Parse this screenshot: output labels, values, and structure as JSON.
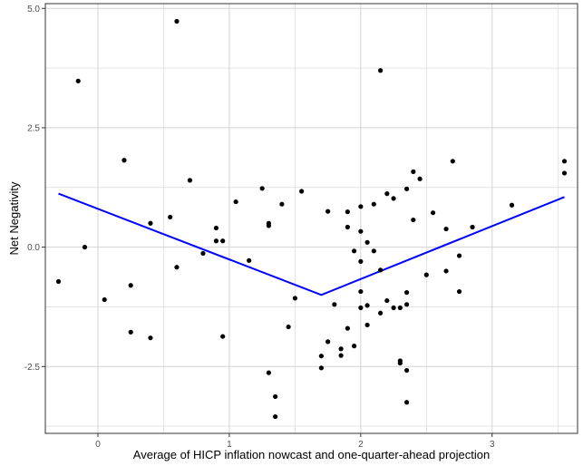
{
  "chart_data": {
    "type": "scatter",
    "title": "",
    "xlabel": "Average of HICP inflation nowcast and one-quarter-ahead projection",
    "ylabel": "Net Negativity",
    "xlim": [
      -0.4,
      3.65
    ],
    "ylim": [
      -3.9,
      5.1
    ],
    "x_ticks": [
      0,
      1,
      2,
      3
    ],
    "x_tick_labels": [
      "0",
      "1",
      "2",
      "3"
    ],
    "y_ticks": [
      -2.5,
      0.0,
      2.5,
      5.0
    ],
    "y_tick_labels": [
      "-2.5",
      "0.0",
      "2.5",
      "5.0"
    ],
    "grid": true,
    "background": "#ffffff",
    "grid_color": "#d3d3d3",
    "point_color": "#000000",
    "line_color": "#0000ff",
    "points": [
      {
        "x": -0.3,
        "y": -0.72
      },
      {
        "x": -0.15,
        "y": 3.48
      },
      {
        "x": -0.1,
        "y": 0.0
      },
      {
        "x": 0.05,
        "y": -1.1
      },
      {
        "x": 0.2,
        "y": 1.82
      },
      {
        "x": 0.25,
        "y": -0.8
      },
      {
        "x": 0.25,
        "y": -1.78
      },
      {
        "x": 0.4,
        "y": 0.5
      },
      {
        "x": 0.4,
        "y": -1.9
      },
      {
        "x": 0.55,
        "y": 0.63
      },
      {
        "x": 0.6,
        "y": 4.73
      },
      {
        "x": 0.6,
        "y": -0.42
      },
      {
        "x": 0.7,
        "y": 1.4
      },
      {
        "x": 0.8,
        "y": -0.13
      },
      {
        "x": 0.9,
        "y": 0.4
      },
      {
        "x": 0.9,
        "y": 0.13
      },
      {
        "x": 0.95,
        "y": 0.13
      },
      {
        "x": 0.95,
        "y": -1.87
      },
      {
        "x": 1.05,
        "y": 0.95
      },
      {
        "x": 1.15,
        "y": -0.28
      },
      {
        "x": 1.25,
        "y": 1.23
      },
      {
        "x": 1.3,
        "y": 0.5
      },
      {
        "x": 1.3,
        "y": 0.45
      },
      {
        "x": 1.3,
        "y": -2.63
      },
      {
        "x": 1.35,
        "y": -3.13
      },
      {
        "x": 1.35,
        "y": -3.55
      },
      {
        "x": 1.4,
        "y": 0.9
      },
      {
        "x": 1.45,
        "y": -1.67
      },
      {
        "x": 1.5,
        "y": -1.07
      },
      {
        "x": 1.55,
        "y": 1.17
      },
      {
        "x": 1.7,
        "y": -2.28
      },
      {
        "x": 1.7,
        "y": -2.53
      },
      {
        "x": 1.75,
        "y": 0.75
      },
      {
        "x": 1.75,
        "y": -1.98
      },
      {
        "x": 1.8,
        "y": -1.2
      },
      {
        "x": 1.85,
        "y": -2.13
      },
      {
        "x": 1.85,
        "y": -2.27
      },
      {
        "x": 1.9,
        "y": 0.74
      },
      {
        "x": 1.9,
        "y": 0.42
      },
      {
        "x": 1.9,
        "y": -1.7
      },
      {
        "x": 1.95,
        "y": -0.08
      },
      {
        "x": 1.95,
        "y": -2.07
      },
      {
        "x": 2.0,
        "y": 0.85
      },
      {
        "x": 2.0,
        "y": 0.33
      },
      {
        "x": 2.0,
        "y": -0.3
      },
      {
        "x": 2.0,
        "y": -0.93
      },
      {
        "x": 2.0,
        "y": -1.27
      },
      {
        "x": 2.05,
        "y": 0.1
      },
      {
        "x": 2.05,
        "y": -1.22
      },
      {
        "x": 2.05,
        "y": -1.63
      },
      {
        "x": 2.1,
        "y": 0.9
      },
      {
        "x": 2.1,
        "y": -0.08
      },
      {
        "x": 2.15,
        "y": 3.7
      },
      {
        "x": 2.15,
        "y": -0.48
      },
      {
        "x": 2.15,
        "y": -1.38
      },
      {
        "x": 2.2,
        "y": 1.12
      },
      {
        "x": 2.2,
        "y": -1.12
      },
      {
        "x": 2.25,
        "y": 1.02
      },
      {
        "x": 2.25,
        "y": -1.27
      },
      {
        "x": 2.3,
        "y": -1.27
      },
      {
        "x": 2.3,
        "y": -2.38
      },
      {
        "x": 2.3,
        "y": -2.43
      },
      {
        "x": 2.35,
        "y": 1.22
      },
      {
        "x": 2.35,
        "y": -0.95
      },
      {
        "x": 2.35,
        "y": -1.2
      },
      {
        "x": 2.35,
        "y": -2.58
      },
      {
        "x": 2.35,
        "y": -3.25
      },
      {
        "x": 2.4,
        "y": 1.58
      },
      {
        "x": 2.4,
        "y": 0.57
      },
      {
        "x": 2.45,
        "y": 1.43
      },
      {
        "x": 2.5,
        "y": -0.58
      },
      {
        "x": 2.55,
        "y": 0.72
      },
      {
        "x": 2.65,
        "y": 0.38
      },
      {
        "x": 2.65,
        "y": -0.5
      },
      {
        "x": 2.7,
        "y": 1.8
      },
      {
        "x": 2.75,
        "y": -0.18
      },
      {
        "x": 2.75,
        "y": -0.93
      },
      {
        "x": 2.85,
        "y": 0.42
      },
      {
        "x": 3.15,
        "y": 0.88
      },
      {
        "x": 3.55,
        "y": 1.8
      },
      {
        "x": 3.55,
        "y": 1.55
      }
    ],
    "fit_line": {
      "x": [
        -0.3,
        1.7,
        3.55
      ],
      "y": [
        1.12,
        -1.0,
        1.05
      ]
    }
  }
}
